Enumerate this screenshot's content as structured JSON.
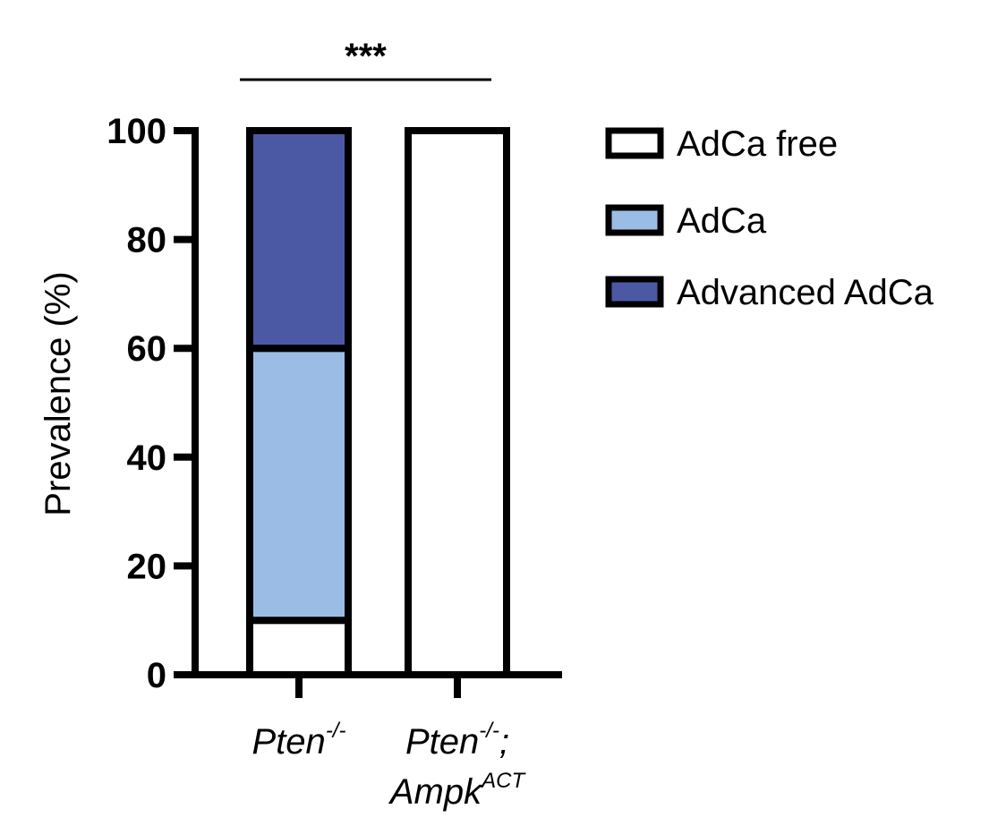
{
  "chart_data": {
    "type": "bar",
    "stacked": true,
    "categories": [
      {
        "base": "Pten",
        "sup": "-/-",
        "suffix": "",
        "line2_base": "",
        "line2_sup": ""
      },
      {
        "base": "Pten",
        "sup": "-/-",
        "suffix": ";",
        "line2_base": "Ampk",
        "line2_sup": "ACT"
      }
    ],
    "series": [
      {
        "name": "AdCa free",
        "values": [
          10,
          100
        ],
        "color": "#ffffff"
      },
      {
        "name": "AdCa",
        "values": [
          50,
          0
        ],
        "color": "#9bbde5"
      },
      {
        "name": "Advanced AdCa",
        "values": [
          40,
          0
        ],
        "color": "#4b59a4"
      }
    ],
    "ylabel": "Prevalence (%)",
    "xlabel": "",
    "title": "",
    "ylim": [
      0,
      100
    ],
    "yticks": [
      "0",
      "20",
      "40",
      "60",
      "80",
      "100"
    ],
    "grid": false,
    "legend_position": "right",
    "significance": {
      "label": "***",
      "between": [
        0,
        1
      ]
    }
  }
}
